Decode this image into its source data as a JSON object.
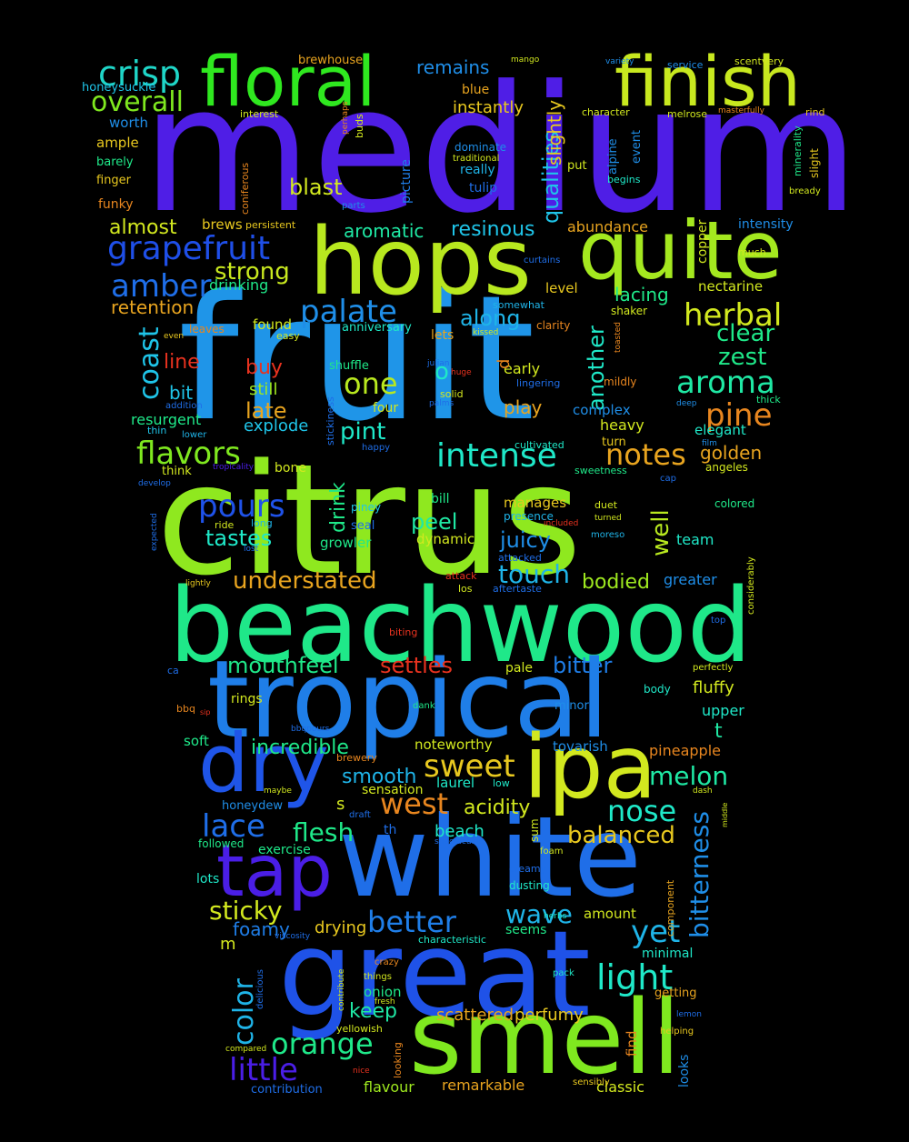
{
  "words": [
    {
      "text": "medium",
      "color": "#4f1ee6"
    },
    {
      "text": "fruit",
      "color": "#1f95e8"
    },
    {
      "text": "citrus",
      "color": "#8fe81f"
    },
    {
      "text": "beachwood",
      "color": "#1fe889"
    },
    {
      "text": "tropical",
      "color": "#1f7ee8"
    },
    {
      "text": "white",
      "color": "#1f6ee8"
    },
    {
      "text": "great",
      "color": "#1f52e8"
    },
    {
      "text": "smell",
      "color": "#7fe81f"
    },
    {
      "text": "hops",
      "color": "#b8e81f"
    },
    {
      "text": "quite",
      "color": "#a4e81f"
    },
    {
      "text": "floral",
      "color": "#2fe81f"
    },
    {
      "text": "finish",
      "color": "#c8e81f"
    },
    {
      "text": "ipa",
      "color": "#d2e81f"
    },
    {
      "text": "dry",
      "color": "#1f55e8"
    },
    {
      "text": "tap",
      "color": "#4a1ee6"
    },
    {
      "text": "crisp",
      "color": "#1fd6c8"
    },
    {
      "text": "overall",
      "color": "#7fe81f"
    },
    {
      "text": "grapefruit",
      "color": "#1f4fe8"
    },
    {
      "text": "amber",
      "color": "#1f6ee8"
    },
    {
      "text": "strong",
      "color": "#c8e81f"
    },
    {
      "text": "palate",
      "color": "#1f8ee8"
    },
    {
      "text": "herbal",
      "color": "#d2e81f"
    },
    {
      "text": "aroma",
      "color": "#1fe8a4"
    },
    {
      "text": "pine",
      "color": "#e8861f"
    },
    {
      "text": "coast",
      "color": "#1fc4e8"
    },
    {
      "text": "one",
      "color": "#b8e81f"
    },
    {
      "text": "intense",
      "color": "#1fe8c8"
    },
    {
      "text": "notes",
      "color": "#e8a41f"
    },
    {
      "text": "flavors",
      "color": "#7fe81f"
    },
    {
      "text": "pours",
      "color": "#1f52e8"
    },
    {
      "text": "tastes",
      "color": "#1fe8c8"
    },
    {
      "text": "understated",
      "color": "#e8a41f"
    },
    {
      "text": "touch",
      "color": "#1fb4e8"
    },
    {
      "text": "bodied",
      "color": "#9ee81f"
    },
    {
      "text": "juicy",
      "color": "#1f8ee8"
    },
    {
      "text": "peel",
      "color": "#1fe8a4"
    },
    {
      "text": "well",
      "color": "#b8e81f"
    },
    {
      "text": "mouthfeel",
      "color": "#1fe889"
    },
    {
      "text": "settles",
      "color": "#e8321f"
    },
    {
      "text": "bitter",
      "color": "#1f7ee8"
    },
    {
      "text": "sweet",
      "color": "#e8c81f"
    },
    {
      "text": "west",
      "color": "#e8861f"
    },
    {
      "text": "nose",
      "color": "#1fe8c8"
    },
    {
      "text": "melon",
      "color": "#1fe8a4"
    },
    {
      "text": "lace",
      "color": "#1f6ee8"
    },
    {
      "text": "flesh",
      "color": "#1fe889"
    },
    {
      "text": "balanced",
      "color": "#e8c81f"
    },
    {
      "text": "bitterness",
      "color": "#1f8ee8"
    },
    {
      "text": "better",
      "color": "#1f7ee8"
    },
    {
      "text": "wave",
      "color": "#1fb4e8"
    },
    {
      "text": "yet",
      "color": "#1fb4e8"
    },
    {
      "text": "light",
      "color": "#1fe8c8"
    },
    {
      "text": "sticky",
      "color": "#d2e81f"
    },
    {
      "text": "orange",
      "color": "#1fe889"
    },
    {
      "text": "color",
      "color": "#1fb4e8"
    },
    {
      "text": "little",
      "color": "#4a1ee6"
    },
    {
      "text": "keep",
      "color": "#1fe8a4"
    },
    {
      "text": "incredible",
      "color": "#1fe889"
    },
    {
      "text": "smooth",
      "color": "#1fb4e8"
    },
    {
      "text": "acidity",
      "color": "#d2e81f"
    },
    {
      "text": "beach",
      "color": "#1fe8c8"
    },
    {
      "text": "foamy",
      "color": "#1f7ee8"
    },
    {
      "text": "drying",
      "color": "#e8c81f"
    },
    {
      "text": "scattered",
      "color": "#e8a41f"
    },
    {
      "text": "perfumy",
      "color": "#e8c81f"
    },
    {
      "text": "remarkable",
      "color": "#e8a41f"
    },
    {
      "text": "classic",
      "color": "#d2e81f"
    },
    {
      "text": "flavour",
      "color": "#9ee81f"
    },
    {
      "text": "contribution",
      "color": "#1f6ee8"
    },
    {
      "text": "aromatic",
      "color": "#1fe8a4"
    },
    {
      "text": "resinous",
      "color": "#1fc4e8"
    },
    {
      "text": "blast",
      "color": "#d2e81f"
    },
    {
      "text": "remains",
      "color": "#1f8ee8"
    },
    {
      "text": "instantly",
      "color": "#e8c81f"
    },
    {
      "text": "qualities",
      "color": "#1fc4e8"
    },
    {
      "text": "slightly",
      "color": "#e8c81f"
    },
    {
      "text": "almost",
      "color": "#d2e81f"
    },
    {
      "text": "along",
      "color": "#1fb4e8"
    },
    {
      "text": "another",
      "color": "#1fe8c8"
    },
    {
      "text": "lacing",
      "color": "#1fe889"
    },
    {
      "text": "clear",
      "color": "#1fe889"
    },
    {
      "text": "zest",
      "color": "#1fe889"
    },
    {
      "text": "golden",
      "color": "#e8a41f"
    },
    {
      "text": "drink",
      "color": "#1fe889"
    },
    {
      "text": "pint",
      "color": "#1fe8c8"
    },
    {
      "text": "late",
      "color": "#e8a41f"
    },
    {
      "text": "buy",
      "color": "#e8321f"
    },
    {
      "text": "line",
      "color": "#e8321f"
    },
    {
      "text": "bit",
      "color": "#1fc4e8"
    },
    {
      "text": "still",
      "color": "#9ee81f"
    },
    {
      "text": "explode",
      "color": "#1fc4e8"
    },
    {
      "text": "play",
      "color": "#e8a41f"
    },
    {
      "text": "early",
      "color": "#d2e81f"
    },
    {
      "text": "resurgent",
      "color": "#1fe889"
    },
    {
      "text": "retention",
      "color": "#e8a41f"
    },
    {
      "text": "drinking",
      "color": "#1fe889"
    },
    {
      "text": "abundance",
      "color": "#e8a41f"
    },
    {
      "text": "heavy",
      "color": "#d2e81f"
    },
    {
      "text": "complex",
      "color": "#1f8ee8"
    },
    {
      "text": "elegant",
      "color": "#1fe8c8"
    },
    {
      "text": "growler",
      "color": "#1fe889"
    },
    {
      "text": "dynamic",
      "color": "#d2e81f"
    },
    {
      "text": "manages",
      "color": "#e8c81f"
    },
    {
      "text": "team",
      "color": "#1fe8c8"
    },
    {
      "text": "greater",
      "color": "#1f8ee8"
    },
    {
      "text": "pale",
      "color": "#d2e81f"
    },
    {
      "text": "fluffy",
      "color": "#d2e81f"
    },
    {
      "text": "upper",
      "color": "#1fe8c8"
    },
    {
      "text": "noteworthy",
      "color": "#d2e81f"
    },
    {
      "text": "tovarish",
      "color": "#1f8ee8"
    },
    {
      "text": "pineapple",
      "color": "#e8861f"
    },
    {
      "text": "laurel",
      "color": "#1fe8c8"
    },
    {
      "text": "sensation",
      "color": "#d2e81f"
    },
    {
      "text": "exercise",
      "color": "#1fe889"
    },
    {
      "text": "honeydew",
      "color": "#1f8ee8"
    },
    {
      "text": "nectarine",
      "color": "#d2e81f"
    },
    {
      "text": "level",
      "color": "#e8c81f"
    },
    {
      "text": "intensity",
      "color": "#1f8ee8"
    },
    {
      "text": "copper",
      "color": "#d2e81f"
    },
    {
      "text": "brews",
      "color": "#e8c81f"
    },
    {
      "text": "found",
      "color": "#d2e81f"
    },
    {
      "text": "rings",
      "color": "#d2e81f"
    },
    {
      "text": "soft",
      "color": "#1fe889"
    },
    {
      "text": "lots",
      "color": "#1fe8c8"
    },
    {
      "text": "amount",
      "color": "#d2e81f"
    },
    {
      "text": "seems",
      "color": "#1fe889"
    },
    {
      "text": "minimal",
      "color": "#1fe8c8"
    },
    {
      "text": "getting",
      "color": "#e8a41f"
    },
    {
      "text": "looks",
      "color": "#1f8ee8"
    },
    {
      "text": "find",
      "color": "#e8861f"
    },
    {
      "text": "onion",
      "color": "#1fe889"
    },
    {
      "text": "worth",
      "color": "#1f8ee8"
    },
    {
      "text": "ample",
      "color": "#e8c81f"
    },
    {
      "text": "barely",
      "color": "#1fe889"
    },
    {
      "text": "finger",
      "color": "#e8c81f"
    },
    {
      "text": "funky",
      "color": "#e8861f"
    },
    {
      "text": "honeysuckle",
      "color": "#1fc4e8"
    },
    {
      "text": "brewhouse",
      "color": "#e8a41f"
    },
    {
      "text": "blue",
      "color": "#e8a41f"
    },
    {
      "text": "dominate",
      "color": "#1f8ee8"
    },
    {
      "text": "traditional",
      "color": "#d2e81f"
    },
    {
      "text": "really",
      "color": "#1fb4e8"
    },
    {
      "text": "tulip",
      "color": "#1f6ee8"
    },
    {
      "text": "picture",
      "color": "#1f7ee8"
    },
    {
      "text": "buds",
      "color": "#d2e81f"
    },
    {
      "text": "alpine",
      "color": "#1f8ee8"
    },
    {
      "text": "event",
      "color": "#1f8ee8"
    },
    {
      "text": "put",
      "color": "#d2e81f"
    },
    {
      "text": "begins",
      "color": "#1fe8c8"
    },
    {
      "text": "character",
      "color": "#d2e81f"
    },
    {
      "text": "melrose",
      "color": "#d2e81f"
    },
    {
      "text": "minerality",
      "color": "#1fe889"
    },
    {
      "text": "slight",
      "color": "#e8c81f"
    },
    {
      "text": "bready",
      "color": "#d2e81f"
    },
    {
      "text": "service",
      "color": "#1f8ee8"
    },
    {
      "text": "scentvery",
      "color": "#d2e81f"
    },
    {
      "text": "rind",
      "color": "#e8c81f"
    },
    {
      "text": "masterfully",
      "color": "#e8861f"
    },
    {
      "text": "variety",
      "color": "#1f8ee8"
    },
    {
      "text": "mango",
      "color": "#d2e81f"
    },
    {
      "text": "interest",
      "color": "#d2e81f"
    },
    {
      "text": "perhaps",
      "color": "#e8861f"
    },
    {
      "text": "coniferous",
      "color": "#e8861f"
    },
    {
      "text": "persistent",
      "color": "#e8c81f"
    },
    {
      "text": "parts",
      "color": "#1f8ee8"
    },
    {
      "text": "curtains",
      "color": "#1f6ee8"
    },
    {
      "text": "much",
      "color": "#d2e81f"
    },
    {
      "text": "somewhat",
      "color": "#1fb4e8"
    },
    {
      "text": "shaker",
      "color": "#d2e81f"
    },
    {
      "text": "toasted",
      "color": "#e8861f"
    },
    {
      "text": "clarity",
      "color": "#e8861f"
    },
    {
      "text": "kissed",
      "color": "#d2e81f"
    },
    {
      "text": "anniversary",
      "color": "#1fe8c8"
    },
    {
      "text": "easy",
      "color": "#d2e81f"
    },
    {
      "text": "leaves",
      "color": "#e8861f"
    },
    {
      "text": "even",
      "color": "#e8c81f"
    },
    {
      "text": "lets",
      "color": "#e8a41f"
    },
    {
      "text": "shuffle",
      "color": "#1fe889"
    },
    {
      "text": "julian",
      "color": "#1f6ee8"
    },
    {
      "text": "huge",
      "color": "#e8321f"
    },
    {
      "text": "mildly",
      "color": "#e8861f"
    },
    {
      "text": "lingering",
      "color": "#1f6ee8"
    },
    {
      "text": "solid",
      "color": "#d2e81f"
    },
    {
      "text": "palms",
      "color": "#1f6ee8"
    },
    {
      "text": "deep",
      "color": "#1f8ee8"
    },
    {
      "text": "thick",
      "color": "#1fe889"
    },
    {
      "text": "stickiness",
      "color": "#1f6ee8"
    },
    {
      "text": "four",
      "color": "#d2e81f"
    },
    {
      "text": "addition",
      "color": "#1f6ee8"
    },
    {
      "text": "thin",
      "color": "#1fc4e8"
    },
    {
      "text": "lower",
      "color": "#1fb4e8"
    },
    {
      "text": "happy",
      "color": "#1f6ee8"
    },
    {
      "text": "cultivated",
      "color": "#1fe8c8"
    },
    {
      "text": "turn",
      "color": "#e8c81f"
    },
    {
      "text": "film",
      "color": "#1f8ee8"
    },
    {
      "text": "think",
      "color": "#d2e81f"
    },
    {
      "text": "tropicality",
      "color": "#4a1ee6"
    },
    {
      "text": "bone",
      "color": "#d2e81f"
    },
    {
      "text": "sweetness",
      "color": "#1fe889"
    },
    {
      "text": "cap",
      "color": "#1f6ee8"
    },
    {
      "text": "angeles",
      "color": "#d2e81f"
    },
    {
      "text": "develop",
      "color": "#1f6ee8"
    },
    {
      "text": "expected",
      "color": "#1f6ee8"
    },
    {
      "text": "ride",
      "color": "#d2e81f"
    },
    {
      "text": "long",
      "color": "#1fb4e8"
    },
    {
      "text": "piney",
      "color": "#1fc4e8"
    },
    {
      "text": "seal",
      "color": "#1f6ee8"
    },
    {
      "text": "lost",
      "color": "#1f6ee8"
    },
    {
      "text": "bill",
      "color": "#1fe889"
    },
    {
      "text": "presence",
      "color": "#1fb4e8"
    },
    {
      "text": "included",
      "color": "#e8321f"
    },
    {
      "text": "duet",
      "color": "#d2e81f"
    },
    {
      "text": "turned",
      "color": "#d2e81f"
    },
    {
      "text": "colored",
      "color": "#1fe889"
    },
    {
      "text": "moreso",
      "color": "#1fb4e8"
    },
    {
      "text": "attacked",
      "color": "#1f6ee8"
    },
    {
      "text": "considerably",
      "color": "#d2e81f"
    },
    {
      "text": "lightly",
      "color": "#e8c81f"
    },
    {
      "text": "attack",
      "color": "#e8321f"
    },
    {
      "text": "los",
      "color": "#d2e81f"
    },
    {
      "text": "aftertaste",
      "color": "#1f6ee8"
    },
    {
      "text": "top",
      "color": "#1f6ee8"
    },
    {
      "text": "biting",
      "color": "#e8321f"
    },
    {
      "text": "ca",
      "color": "#1f6ee8"
    },
    {
      "text": "perfectly",
      "color": "#d2e81f"
    },
    {
      "text": "bbq",
      "color": "#e8861f"
    },
    {
      "text": "sip",
      "color": "#e8321f"
    },
    {
      "text": "dank",
      "color": "#1fe889"
    },
    {
      "text": "minor",
      "color": "#1f8ee8"
    },
    {
      "text": "body",
      "color": "#1fe8c8"
    },
    {
      "text": "bbqpours",
      "color": "#1f6ee8"
    },
    {
      "text": "t",
      "color": "#1fe8a4"
    },
    {
      "text": "brewery",
      "color": "#e8861f"
    },
    {
      "text": "low",
      "color": "#1fe8c8"
    },
    {
      "text": "maybe",
      "color": "#d2e81f"
    },
    {
      "text": "s",
      "color": "#d2e81f"
    },
    {
      "text": "draft",
      "color": "#1f6ee8"
    },
    {
      "text": "dash",
      "color": "#d2e81f"
    },
    {
      "text": "middle",
      "color": "#d2e81f"
    },
    {
      "text": "followed",
      "color": "#1fe889"
    },
    {
      "text": "th",
      "color": "#1f6ee8"
    },
    {
      "text": "sum",
      "color": "#d2e81f"
    },
    {
      "text": "spectacular",
      "color": "#1f6ee8"
    },
    {
      "text": "foam",
      "color": "#d2e81f"
    },
    {
      "text": "creamy",
      "color": "#1f6ee8"
    },
    {
      "text": "dusting",
      "color": "#1fe8c8"
    },
    {
      "text": "component",
      "color": "#e8a41f"
    },
    {
      "text": "herbs",
      "color": "#1fe8c8"
    },
    {
      "text": "viscosity",
      "color": "#1f6ee8"
    },
    {
      "text": "characteristic",
      "color": "#1fe8c8"
    },
    {
      "text": "m",
      "color": "#d2e81f"
    },
    {
      "text": "delicious",
      "color": "#1f6ee8"
    },
    {
      "text": "crazy",
      "color": "#e8861f"
    },
    {
      "text": "things",
      "color": "#d2e81f"
    },
    {
      "text": "contribute",
      "color": "#d2e81f"
    },
    {
      "text": "fresh",
      "color": "#d2e81f"
    },
    {
      "text": "yellowish",
      "color": "#d2e81f"
    },
    {
      "text": "looking",
      "color": "#e8861f"
    },
    {
      "text": "pack",
      "color": "#1fe8c8"
    },
    {
      "text": "lemon",
      "color": "#1f6ee8"
    },
    {
      "text": "helping",
      "color": "#e8c81f"
    },
    {
      "text": "compared",
      "color": "#d2e81f"
    },
    {
      "text": "nice",
      "color": "#e8321f"
    },
    {
      "text": "sensibly",
      "color": "#e8c81f"
    },
    {
      "text": "o",
      "color": "#1fe8c8"
    },
    {
      "text": "d",
      "color": "#e8861f"
    }
  ]
}
